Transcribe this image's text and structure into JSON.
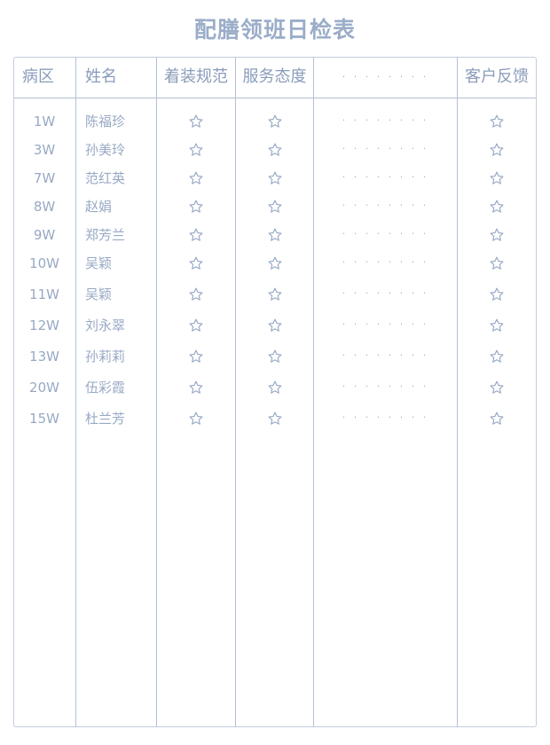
{
  "title": "配膳领班日检表",
  "header": {
    "ward": "病区",
    "name": "姓名",
    "dress": "着装规范",
    "service": "服务态度",
    "more": "· · · · · · · ·",
    "feedback": "客户反馈"
  },
  "rows": [
    {
      "ward": "1W",
      "name": "陈福珍"
    },
    {
      "ward": "3W",
      "name": "孙美玲"
    },
    {
      "ward": "7W",
      "name": "范红英"
    },
    {
      "ward": "8W",
      "name": "赵娟"
    },
    {
      "ward": "9W",
      "name": "郑芳兰"
    },
    {
      "ward": "10W",
      "name": "吴颖"
    },
    {
      "ward": "11W",
      "name": "吴颖"
    },
    {
      "ward": "12W",
      "name": "刘永翠"
    },
    {
      "ward": "13W",
      "name": "孙莉莉"
    },
    {
      "ward": "20W",
      "name": "伍彩霞"
    },
    {
      "ward": "15W",
      "name": "杜兰芳"
    }
  ],
  "row_more": "· · · · · · · ·",
  "rating_icon": "star-outline-icon",
  "colors": {
    "title": "#9badc9",
    "line": "#b3c0d4",
    "text": "#98a9c4"
  }
}
